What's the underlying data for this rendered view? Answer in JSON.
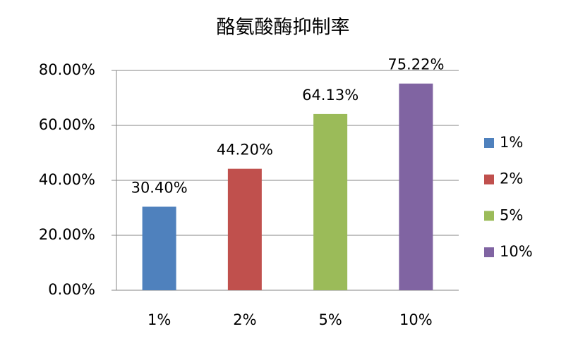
{
  "chart_data": {
    "type": "bar",
    "title": "酪氨酸酶抑制率",
    "categories": [
      "1%",
      "2%",
      "5%",
      "10%"
    ],
    "values": [
      30.4,
      44.2,
      64.13,
      75.22
    ],
    "value_labels": [
      "30.40%",
      "44.20%",
      "64.13%",
      "75.22%"
    ],
    "colors": [
      "#4f81bd",
      "#c0504d",
      "#9bbb59",
      "#8064a2"
    ],
    "ylim": [
      0,
      80
    ],
    "yticks": [
      {
        "value": 0,
        "label": "0.00%"
      },
      {
        "value": 20,
        "label": "20.00%"
      },
      {
        "value": 40,
        "label": "40.00%"
      },
      {
        "value": 60,
        "label": "60.00%"
      },
      {
        "value": 80,
        "label": "80.00%"
      }
    ],
    "grid": true,
    "legend": "right"
  }
}
